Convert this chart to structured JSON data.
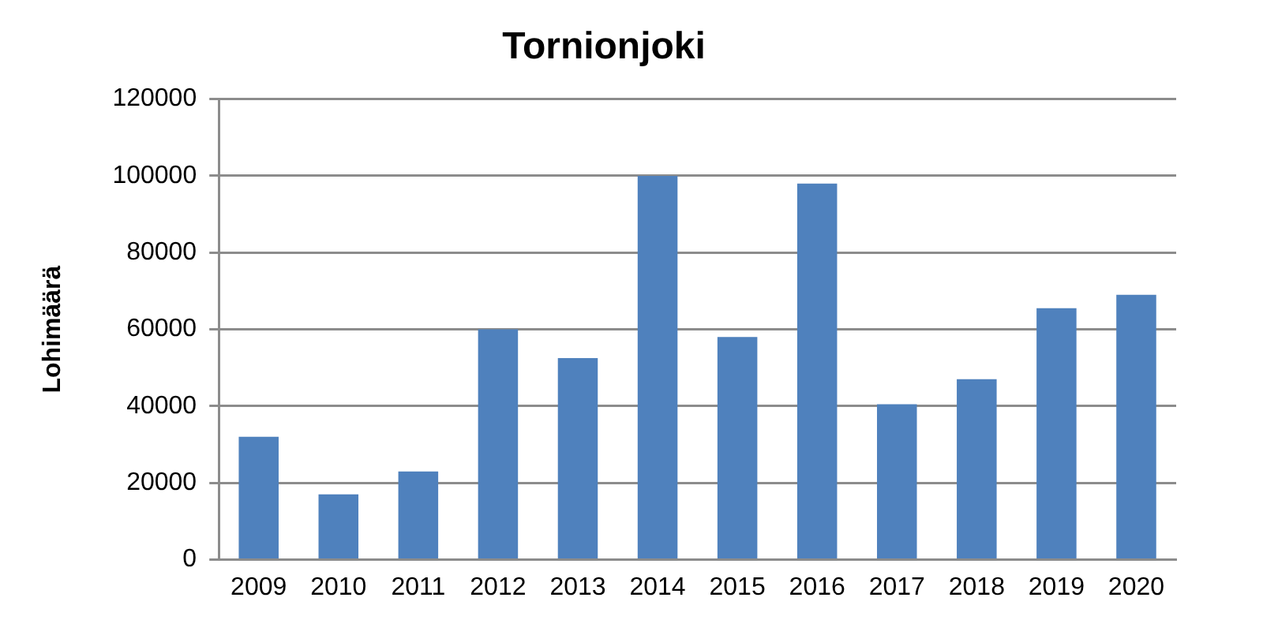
{
  "chart_data": {
    "type": "bar",
    "title": "Tornionjoki",
    "ylabel": "Lohimäärä",
    "categories": [
      "2009",
      "2010",
      "2011",
      "2012",
      "2013",
      "2014",
      "2015",
      "2016",
      "2017",
      "2018",
      "2019",
      "2020"
    ],
    "values": [
      32000,
      17000,
      23000,
      60000,
      52500,
      100000,
      58000,
      98000,
      40500,
      47000,
      65500,
      69000
    ],
    "color": "#4f81bd",
    "ylim": [
      0,
      120000
    ],
    "yticks": [
      0,
      20000,
      40000,
      60000,
      80000,
      100000,
      120000
    ],
    "grid": "y",
    "legend": false
  }
}
